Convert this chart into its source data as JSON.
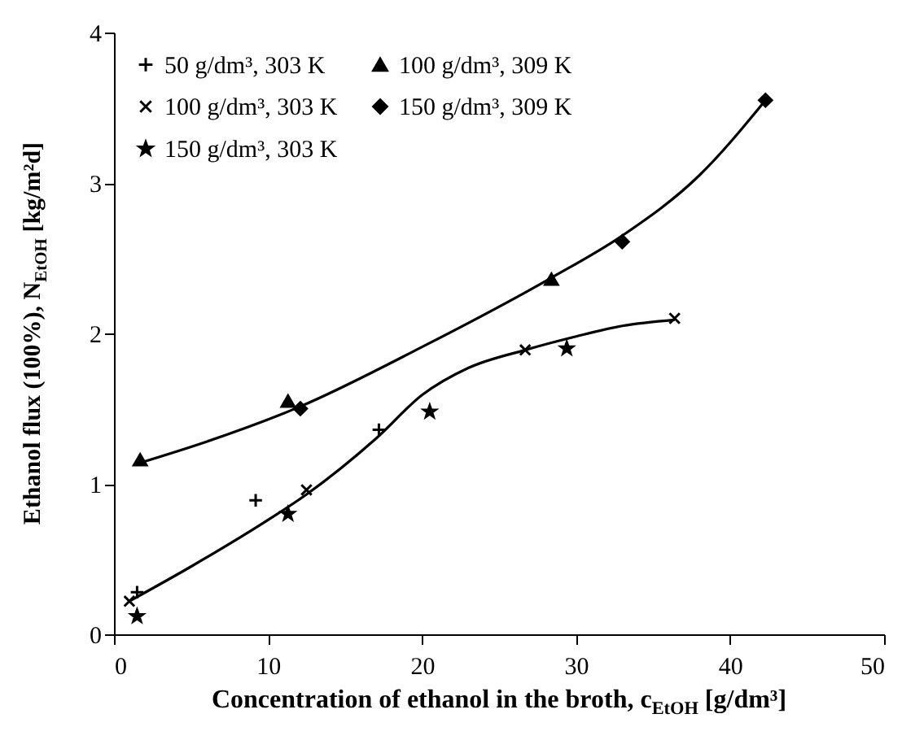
{
  "chart_data": {
    "type": "scatter",
    "xlabel": "Concentration of ethanol in the broth, c$_{EtOH}$ [g/dm³]",
    "ylabel": "Ethanol flux (100%), N$_{EtOH}$ [kg/m²d]",
    "xlim": [
      0,
      50
    ],
    "ylim": [
      0,
      4
    ],
    "xticks": [
      0,
      10,
      20,
      30,
      40,
      50
    ],
    "yticks": [
      0,
      1,
      2,
      3,
      4
    ],
    "grid": false,
    "legend": "top left",
    "series": [
      {
        "name": "50 g/dm³, 303 K",
        "color": "#000000",
        "marker": "plus",
        "x": [
          1.5,
          9.2,
          17.2
        ],
        "values": [
          0.28,
          0.89,
          1.36
        ]
      },
      {
        "name": "100 g/dm³, 303 K",
        "color": "#000000",
        "marker": "cross",
        "x": [
          1.0,
          12.5,
          26.7,
          36.4
        ],
        "values": [
          0.22,
          0.96,
          1.89,
          2.1
        ]
      },
      {
        "name": "150 g/dm³, 303 K",
        "color": "#000000",
        "marker": "star",
        "x": [
          1.5,
          11.3,
          20.5,
          29.4
        ],
        "values": [
          0.12,
          0.8,
          1.48,
          1.9
        ]
      },
      {
        "name": "100 g/dm³, 309 K",
        "color": "#000000",
        "marker": "triangle",
        "x": [
          1.7,
          11.3,
          28.4
        ],
        "values": [
          1.16,
          1.55,
          2.36
        ]
      },
      {
        "name": "150 g/dm³, 309 K",
        "color": "#000000",
        "marker": "diamond",
        "x": [
          12.1,
          33.0,
          42.3
        ],
        "values": [
          1.5,
          2.61,
          3.55
        ]
      },
      {
        "type": "line",
        "color": "#000000",
        "marker": "none",
        "line_style": "solid",
        "x": [
          1.7,
          6,
          12,
          20,
          28.4,
          33,
          38,
          42.3
        ],
        "values": [
          1.14,
          1.28,
          1.51,
          1.91,
          2.37,
          2.65,
          3.05,
          3.55
        ]
      },
      {
        "type": "line",
        "color": "#000000",
        "marker": "none",
        "line_style": "solid",
        "x": [
          1.0,
          5,
          10,
          12.5,
          17,
          20,
          23,
          26.7,
          30,
          33,
          36.4
        ],
        "values": [
          0.22,
          0.45,
          0.76,
          0.93,
          1.3,
          1.59,
          1.77,
          1.89,
          1.98,
          2.05,
          2.09
        ]
      }
    ]
  }
}
